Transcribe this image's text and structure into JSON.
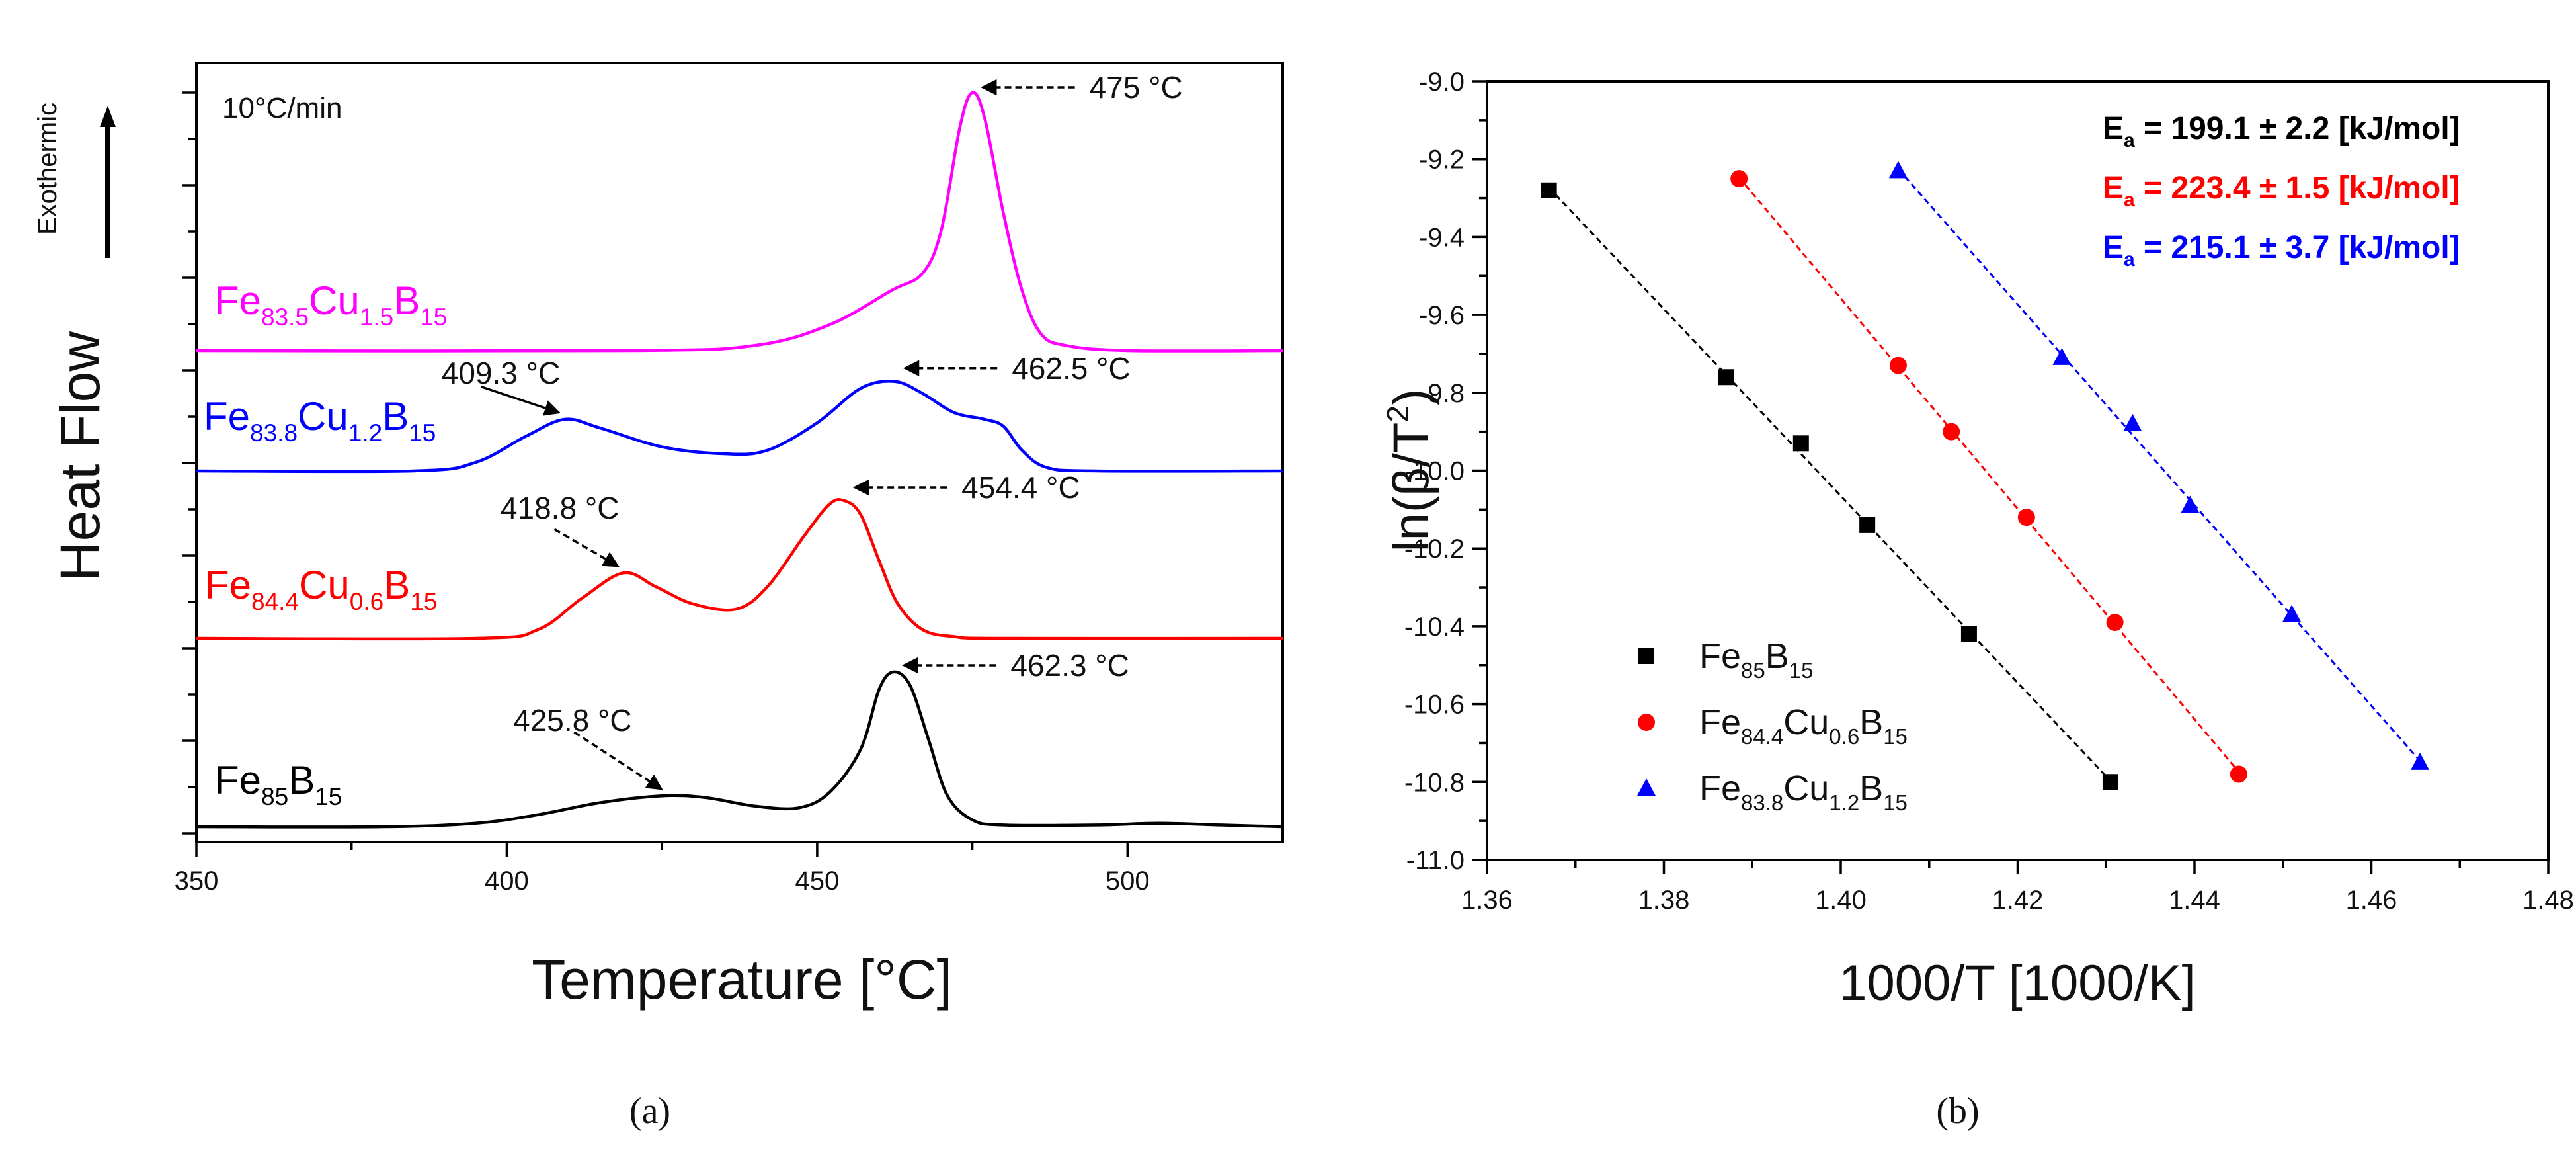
{
  "chart_data": [
    {
      "panel": "a",
      "caption": "(a)",
      "type": "line",
      "xlabel": "Temperature [°C]",
      "ylabel": "Heat Flow",
      "exo_label": "Exothermic",
      "rate_label": "10°C/min",
      "xlim": [
        350,
        525
      ],
      "xticks": [
        "350",
        "400",
        "450",
        "500"
      ],
      "xtick_values": [
        350,
        400,
        450,
        500
      ],
      "series": [
        {
          "id": "fe85b15",
          "name_parts": [
            "Fe",
            "85",
            "B",
            "15"
          ],
          "color": "#000000",
          "offset": 0,
          "points": [
            [
              350,
              0
            ],
            [
              380,
              0
            ],
            [
              395,
              0.02
            ],
            [
              405,
              0.07
            ],
            [
              415,
              0.14
            ],
            [
              425,
              0.18
            ],
            [
              432,
              0.17
            ],
            [
              440,
              0.12
            ],
            [
              447,
              0.11
            ],
            [
              452,
              0.2
            ],
            [
              457,
              0.45
            ],
            [
              460,
              0.8
            ],
            [
              462.3,
              0.9
            ],
            [
              465,
              0.82
            ],
            [
              468,
              0.5
            ],
            [
              471,
              0.18
            ],
            [
              475,
              0.04
            ],
            [
              480,
              0.01
            ],
            [
              495,
              0.01
            ],
            [
              505,
              0.02
            ],
            [
              515,
              0.01
            ],
            [
              525,
              0
            ]
          ],
          "peaks": [
            {
              "x": 425.8,
              "label": "425.8 °C"
            },
            {
              "x": 462.3,
              "label": "462.3 °C"
            }
          ]
        },
        {
          "id": "fe844cu06b15",
          "name_parts": [
            "Fe",
            "84.4",
            "Cu",
            "0.6",
            "B",
            "15"
          ],
          "color": "#ff0000",
          "offset": 1,
          "points": [
            [
              350,
              0
            ],
            [
              395,
              0
            ],
            [
              405,
              0.05
            ],
            [
              412,
              0.23
            ],
            [
              418.8,
              0.38
            ],
            [
              424,
              0.3
            ],
            [
              430,
              0.2
            ],
            [
              437,
              0.17
            ],
            [
              442,
              0.3
            ],
            [
              448,
              0.6
            ],
            [
              452,
              0.78
            ],
            [
              454.4,
              0.8
            ],
            [
              457,
              0.72
            ],
            [
              460,
              0.45
            ],
            [
              463,
              0.2
            ],
            [
              467,
              0.05
            ],
            [
              472,
              0.01
            ],
            [
              480,
              0
            ],
            [
              525,
              0
            ]
          ],
          "peaks": [
            {
              "x": 418.8,
              "label": "418.8 °C"
            },
            {
              "x": 454.4,
              "label": "454.4 °C"
            }
          ]
        },
        {
          "id": "fe838cu12b15",
          "name_parts": [
            "Fe",
            "83.8",
            "Cu",
            "1.2",
            "B",
            "15"
          ],
          "color": "#0000ff",
          "offset": 2,
          "points": [
            [
              350,
              0
            ],
            [
              385,
              0
            ],
            [
              395,
              0.05
            ],
            [
              403,
              0.2
            ],
            [
              409.3,
              0.3
            ],
            [
              415,
              0.25
            ],
            [
              425,
              0.14
            ],
            [
              435,
              0.1
            ],
            [
              442,
              0.12
            ],
            [
              450,
              0.28
            ],
            [
              457,
              0.48
            ],
            [
              462.5,
              0.52
            ],
            [
              467,
              0.45
            ],
            [
              472,
              0.34
            ],
            [
              477,
              0.3
            ],
            [
              480,
              0.26
            ],
            [
              483,
              0.12
            ],
            [
              487,
              0.02
            ],
            [
              495,
              0
            ],
            [
              525,
              0
            ]
          ],
          "peaks": [
            {
              "x": 409.3,
              "label": "409.3 °C"
            },
            {
              "x": 462.5,
              "label": "462.5 °C"
            }
          ]
        },
        {
          "id": "fe835cu15b15",
          "name_parts": [
            "Fe",
            "83.5",
            "Cu",
            "1.5",
            "B",
            "15"
          ],
          "color": "#ff00ff",
          "offset": 3,
          "points": [
            [
              350,
              0
            ],
            [
              420,
              0
            ],
            [
              440,
              0.03
            ],
            [
              452,
              0.15
            ],
            [
              462,
              0.35
            ],
            [
              467,
              0.45
            ],
            [
              470,
              0.7
            ],
            [
              473,
              1.3
            ],
            [
              475,
              1.5
            ],
            [
              477,
              1.35
            ],
            [
              480,
              0.8
            ],
            [
              483,
              0.35
            ],
            [
              486,
              0.1
            ],
            [
              490,
              0.03
            ],
            [
              500,
              0
            ],
            [
              525,
              0
            ]
          ],
          "peaks": [
            {
              "x": 475,
              "label": "475 °C"
            }
          ]
        }
      ]
    },
    {
      "panel": "b",
      "caption": "(b)",
      "type": "scatter",
      "xlabel": "1000/T [1000/K]",
      "ylabel_main": "ln(β/T",
      "ylabel_sup": "2",
      "ylabel_end": ")",
      "xlim": [
        1.36,
        1.48
      ],
      "ylim": [
        -11.0,
        -9.0
      ],
      "xticks": [
        "1.36",
        "1.38",
        "1.40",
        "1.42",
        "1.44",
        "1.46",
        "1.48"
      ],
      "xtick_values": [
        1.36,
        1.38,
        1.4,
        1.42,
        1.44,
        1.46,
        1.48
      ],
      "yticks": [
        "-9.0",
        "-9.2",
        "-9.4",
        "-9.6",
        "-9.8",
        "-10.0",
        "-10.2",
        "-10.4",
        "-10.6",
        "-10.8",
        "-11.0"
      ],
      "ytick_values": [
        -9.0,
        -9.2,
        -9.4,
        -9.6,
        -9.8,
        -10.0,
        -10.2,
        -10.4,
        -10.6,
        -10.8,
        -11.0
      ],
      "series": [
        {
          "id": "fe85b15",
          "name_parts": [
            "Fe",
            "85",
            "B",
            "15"
          ],
          "color": "#000000",
          "marker": "square",
          "x": [
            1.367,
            1.387,
            1.3955,
            1.403,
            1.4145,
            1.4305
          ],
          "y": [
            -9.28,
            -9.76,
            -9.93,
            -10.14,
            -10.42,
            -10.8
          ],
          "ea": {
            "pre": "E",
            "sub": "a",
            "text": " = 199.1 ± 2.2 [kJ/mol]"
          }
        },
        {
          "id": "fe844cu06b15",
          "name_parts": [
            "Fe",
            "84.4",
            "Cu",
            "0.6",
            "B",
            "15"
          ],
          "color": "#ff0000",
          "marker": "circle",
          "x": [
            1.3885,
            1.4065,
            1.4125,
            1.421,
            1.431,
            1.445
          ],
          "y": [
            -9.25,
            -9.73,
            -9.9,
            -10.12,
            -10.39,
            -10.78
          ],
          "ea": {
            "pre": "E",
            "sub": "a",
            "text": " = 223.4 ± 1.5 [kJ/mol]"
          }
        },
        {
          "id": "fe838cu12b15",
          "name_parts": [
            "Fe",
            "83.8",
            "Cu",
            "1.2",
            "B",
            "15"
          ],
          "color": "#0000ff",
          "marker": "triangle",
          "x": [
            1.4065,
            1.425,
            1.433,
            1.4395,
            1.451,
            1.4655
          ],
          "y": [
            -9.23,
            -9.71,
            -9.88,
            -10.09,
            -10.37,
            -10.75
          ],
          "ea": {
            "pre": "E",
            "sub": "a",
            "text": " = 215.1 ± 3.7 [kJ/mol]"
          }
        }
      ]
    }
  ]
}
